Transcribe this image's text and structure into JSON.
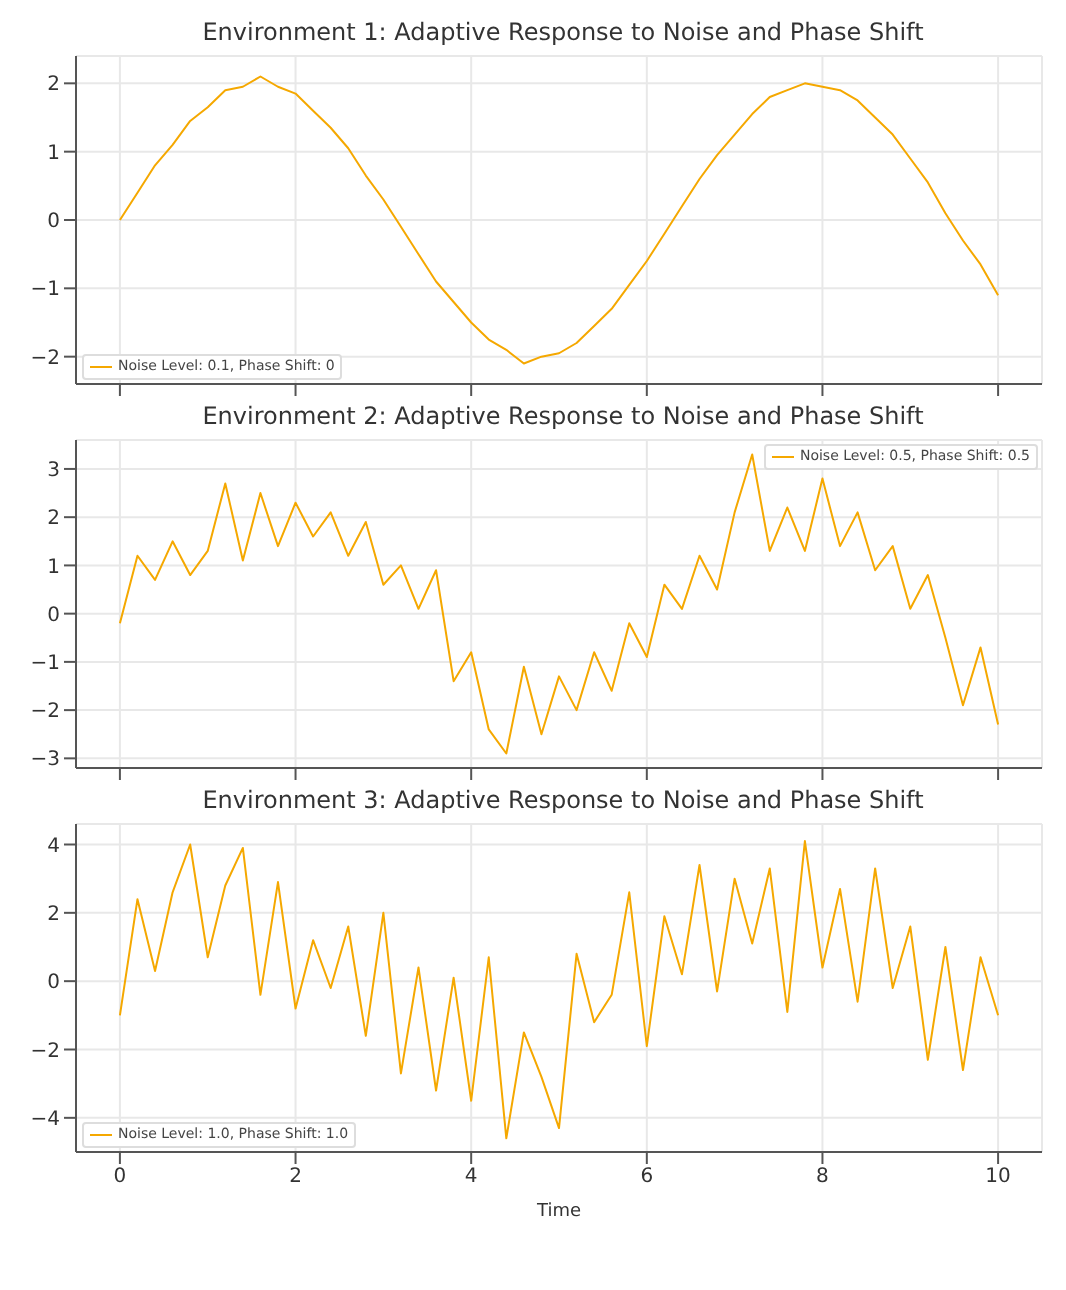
{
  "chart_data": [
    {
      "type": "line",
      "title": "Environment 1: Adaptive Response to Noise and Phase Shift",
      "x": [
        0,
        0.2,
        0.4,
        0.6,
        0.8,
        1,
        1.2,
        1.4,
        1.6,
        1.8,
        2,
        2.2,
        2.4,
        2.6,
        2.8,
        3,
        3.2,
        3.4,
        3.6,
        3.8,
        4,
        4.2,
        4.4,
        4.6,
        4.8,
        5,
        5.2,
        5.4,
        5.6,
        5.8,
        6,
        6.2,
        6.4,
        6.6,
        6.8,
        7,
        7.2,
        7.4,
        7.6,
        7.8,
        8,
        8.2,
        8.4,
        8.6,
        8.8,
        9,
        9.2,
        9.4,
        9.6,
        9.8,
        10
      ],
      "series": [
        {
          "name": "Noise Level: 0.1, Phase Shift: 0",
          "color": "#f5a800",
          "values": [
            0,
            0.4,
            0.8,
            1.1,
            1.45,
            1.65,
            1.9,
            1.95,
            2.1,
            1.95,
            1.85,
            1.6,
            1.35,
            1.05,
            0.65,
            0.3,
            -0.1,
            -0.5,
            -0.9,
            -1.2,
            -1.5,
            -1.75,
            -1.9,
            -2.1,
            -2.0,
            -1.95,
            -1.8,
            -1.55,
            -1.3,
            -0.95,
            -0.6,
            -0.2,
            0.2,
            0.6,
            0.95,
            1.25,
            1.55,
            1.8,
            1.9,
            2.0,
            1.95,
            1.9,
            1.75,
            1.5,
            1.25,
            0.9,
            0.55,
            0.1,
            -0.3,
            -0.65,
            -1.1
          ]
        }
      ],
      "xlim": [
        -0.5,
        10.5
      ],
      "xticks": [
        0,
        2,
        4,
        6,
        8,
        10
      ],
      "ylim": [
        -2.4,
        2.4
      ],
      "yticks": [
        -2,
        -1,
        0,
        1,
        2
      ],
      "grid": true,
      "legend": "bottom left",
      "tick_labels": "y"
    },
    {
      "type": "line",
      "title": "Environment 2: Adaptive Response to Noise and Phase Shift",
      "x": [
        0,
        0.2,
        0.4,
        0.6,
        0.8,
        1,
        1.2,
        1.4,
        1.6,
        1.8,
        2,
        2.2,
        2.4,
        2.6,
        2.8,
        3,
        3.2,
        3.4,
        3.6,
        3.8,
        4,
        4.2,
        4.4,
        4.6,
        4.8,
        5,
        5.2,
        5.4,
        5.6,
        5.8,
        6,
        6.2,
        6.4,
        6.6,
        6.8,
        7,
        7.2,
        7.4,
        7.6,
        7.8,
        8,
        8.2,
        8.4,
        8.6,
        8.8,
        9,
        9.2,
        9.4,
        9.6,
        9.8,
        10
      ],
      "series": [
        {
          "name": "Noise Level: 0.5, Phase Shift: 0.5",
          "color": "#f5a800",
          "values": [
            -0.2,
            1.2,
            0.7,
            1.5,
            0.8,
            1.3,
            2.7,
            1.1,
            2.5,
            1.4,
            2.3,
            1.6,
            2.1,
            1.2,
            1.9,
            0.6,
            1.0,
            0.1,
            0.9,
            -1.4,
            -0.8,
            -2.4,
            -2.9,
            -1.1,
            -2.5,
            -1.3,
            -2.0,
            -0.8,
            -1.6,
            -0.2,
            -0.9,
            0.6,
            0.1,
            1.2,
            0.5,
            2.1,
            3.3,
            1.3,
            2.2,
            1.3,
            2.8,
            1.4,
            2.1,
            0.9,
            1.4,
            0.1,
            0.8,
            -0.5,
            -1.9,
            -0.7,
            -2.3
          ]
        }
      ],
      "xlim": [
        -0.5,
        10.5
      ],
      "xticks": [
        0,
        2,
        4,
        6,
        8,
        10
      ],
      "ylim": [
        -3.2,
        3.6
      ],
      "yticks": [
        -3,
        -2,
        -1,
        0,
        1,
        2,
        3
      ],
      "grid": true,
      "legend": "top right",
      "tick_labels": "y"
    },
    {
      "type": "line",
      "title": "Environment 3: Adaptive Response to Noise and Phase Shift",
      "xlabel": "Time",
      "x": [
        0,
        0.2,
        0.4,
        0.6,
        0.8,
        1,
        1.2,
        1.4,
        1.6,
        1.8,
        2,
        2.2,
        2.4,
        2.6,
        2.8,
        3,
        3.2,
        3.4,
        3.6,
        3.8,
        4,
        4.2,
        4.4,
        4.6,
        4.8,
        5,
        5.2,
        5.4,
        5.6,
        5.8,
        6,
        6.2,
        6.4,
        6.6,
        6.8,
        7,
        7.2,
        7.4,
        7.6,
        7.8,
        8,
        8.2,
        8.4,
        8.6,
        8.8,
        9,
        9.2,
        9.4,
        9.6,
        9.8,
        10
      ],
      "series": [
        {
          "name": "Noise Level: 1.0, Phase Shift: 1.0",
          "color": "#f5a800",
          "values": [
            -1.0,
            2.4,
            0.3,
            2.6,
            4.0,
            0.7,
            2.8,
            3.9,
            -0.4,
            2.9,
            -0.8,
            1.2,
            -0.2,
            1.6,
            -1.6,
            2.0,
            -2.7,
            0.4,
            -3.2,
            0.1,
            -3.5,
            0.7,
            -4.6,
            -1.5,
            -2.8,
            -4.3,
            0.8,
            -1.2,
            -0.4,
            2.6,
            -1.9,
            1.9,
            0.2,
            3.4,
            -0.3,
            3.0,
            1.1,
            3.3,
            -0.9,
            4.1,
            0.4,
            2.7,
            -0.6,
            3.3,
            -0.2,
            1.6,
            -2.3,
            1.0,
            -2.6,
            0.7,
            -1.0
          ]
        }
      ],
      "xlim": [
        -0.5,
        10.5
      ],
      "xticks": [
        0,
        2,
        4,
        6,
        8,
        10
      ],
      "ylim": [
        -5,
        4.6
      ],
      "yticks": [
        -4,
        -2,
        0,
        2,
        4
      ],
      "grid": true,
      "legend": "bottom left"
    }
  ]
}
